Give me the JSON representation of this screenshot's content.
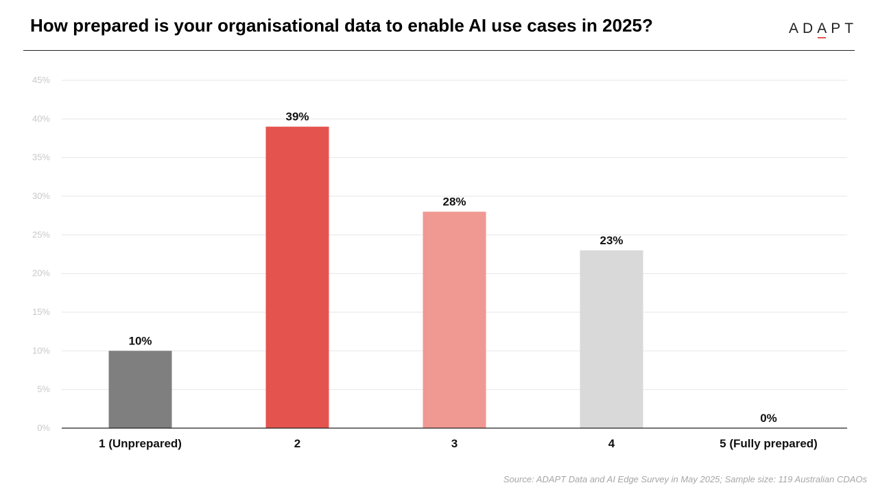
{
  "title": "How prepared is your organisational data to enable AI use cases in 2025?",
  "logo": {
    "before": "AD",
    "accent": "A",
    "after": "PT",
    "accent_color": "#e5534f"
  },
  "source": "Source: ADAPT Data and AI Edge Survey in May 2025; Sample size: 119 Australian CDAOs",
  "chart_data": {
    "type": "bar",
    "title": "How prepared is your organisational data to enable AI use cases in 2025?",
    "xlabel": "",
    "ylabel": "",
    "categories": [
      "1 (Unprepared)",
      "2",
      "3",
      "4",
      "5 (Fully prepared)"
    ],
    "values": [
      10,
      39,
      28,
      23,
      0
    ],
    "value_labels": [
      "10%",
      "39%",
      "28%",
      "23%",
      "0%"
    ],
    "colors": [
      "#7f7f7f",
      "#e5534f",
      "#f09892",
      "#d9d9d9",
      "#d9d9d9"
    ],
    "ylim": [
      0,
      45
    ],
    "yticks": [
      0,
      5,
      10,
      15,
      20,
      25,
      30,
      35,
      40,
      45
    ],
    "ytick_labels": [
      "0%",
      "5%",
      "10%",
      "15%",
      "20%",
      "25%",
      "30%",
      "35%",
      "40%",
      "45%"
    ],
    "grid": true,
    "legend": "none"
  }
}
